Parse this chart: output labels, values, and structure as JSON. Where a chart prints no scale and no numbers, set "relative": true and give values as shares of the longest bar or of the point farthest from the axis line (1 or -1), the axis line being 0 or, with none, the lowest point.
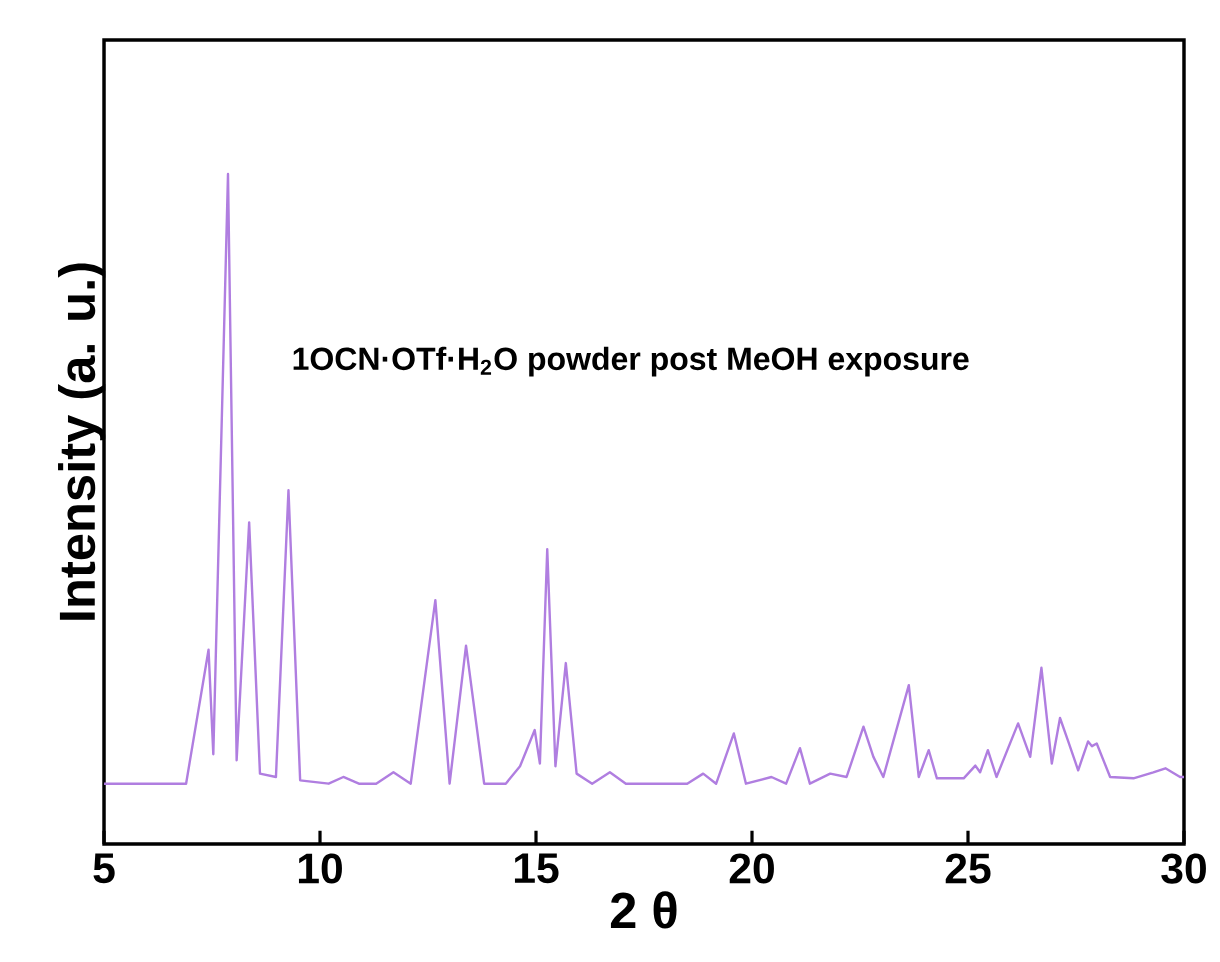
{
  "chart_data": {
    "type": "line",
    "relative": true,
    "xlabel": "2 θ",
    "ylabel": "Intensity (a. u.)",
    "annotations": [
      "1OCN·OTf·H$_{2}$O powder post MeOH exposure"
    ],
    "xlim": [
      5,
      30
    ],
    "xticks": [
      5,
      10,
      15,
      20,
      25,
      30
    ],
    "marker": "none",
    "line_style": "solid",
    "series": [
      {
        "color": "#b07ee0",
        "x": [
          5,
          6.9,
          7.42,
          7.53,
          7.87,
          8.07,
          8.36,
          8.61,
          8.98,
          9.27,
          9.54,
          10.2,
          10.54,
          10.9,
          11.3,
          11.7,
          12.1,
          12.67,
          13.0,
          13.38,
          13.8,
          14.3,
          14.63,
          14.97,
          15.09,
          15.26,
          15.45,
          15.69,
          15.94,
          16.3,
          16.71,
          17.08,
          18.5,
          18.87,
          19.17,
          19.58,
          19.86,
          20.45,
          20.79,
          21.11,
          21.34,
          21.81,
          22.19,
          22.58,
          22.81,
          23.04,
          23.63,
          23.86,
          24.09,
          24.28,
          24.9,
          25.17,
          25.28,
          25.46,
          25.66,
          26.16,
          26.44,
          26.7,
          26.94,
          27.13,
          27.31,
          27.55,
          27.78,
          27.87,
          27.98,
          28.29,
          28.83,
          29.29,
          29.57,
          29.91,
          30
        ],
        "values": [
          0.09,
          0.09,
          0.29,
          0.134,
          1.0,
          0.125,
          0.48,
          0.105,
          0.1,
          0.528,
          0.095,
          0.09,
          0.1,
          0.09,
          0.09,
          0.107,
          0.09,
          0.364,
          0.09,
          0.296,
          0.09,
          0.09,
          0.116,
          0.17,
          0.12,
          0.44,
          0.116,
          0.27,
          0.105,
          0.09,
          0.107,
          0.09,
          0.09,
          0.105,
          0.09,
          0.165,
          0.09,
          0.1,
          0.09,
          0.143,
          0.09,
          0.105,
          0.1,
          0.175,
          0.13,
          0.1,
          0.237,
          0.1,
          0.14,
          0.098,
          0.098,
          0.117,
          0.107,
          0.14,
          0.1,
          0.18,
          0.13,
          0.263,
          0.12,
          0.188,
          0.155,
          0.11,
          0.153,
          0.146,
          0.15,
          0.1,
          0.098,
          0.107,
          0.113,
          0.1,
          0.1
        ]
      }
    ]
  }
}
